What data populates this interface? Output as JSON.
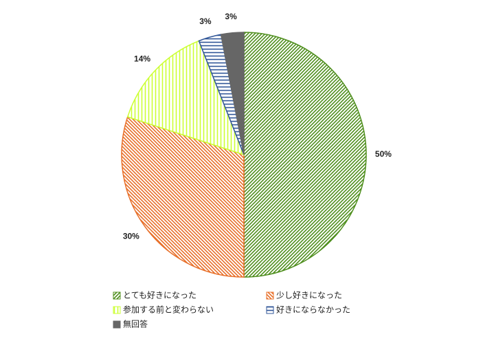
{
  "chart_data": {
    "type": "pie",
    "categories": [
      "とても好きになった",
      "少し好きになった",
      "参加する前と変わらない",
      "好きにならなかった",
      "無回答"
    ],
    "values": [
      50,
      30,
      14,
      3,
      3
    ],
    "value_labels": [
      "50%",
      "30%",
      "14%",
      "3%",
      "3%"
    ],
    "colors": [
      "#4f8f1e",
      "#e8702a",
      "#ccff33",
      "#2f5597",
      "#666666"
    ],
    "patterns": [
      "diagonal-up",
      "diagonal-down",
      "vertical",
      "horizontal",
      "solid"
    ]
  }
}
